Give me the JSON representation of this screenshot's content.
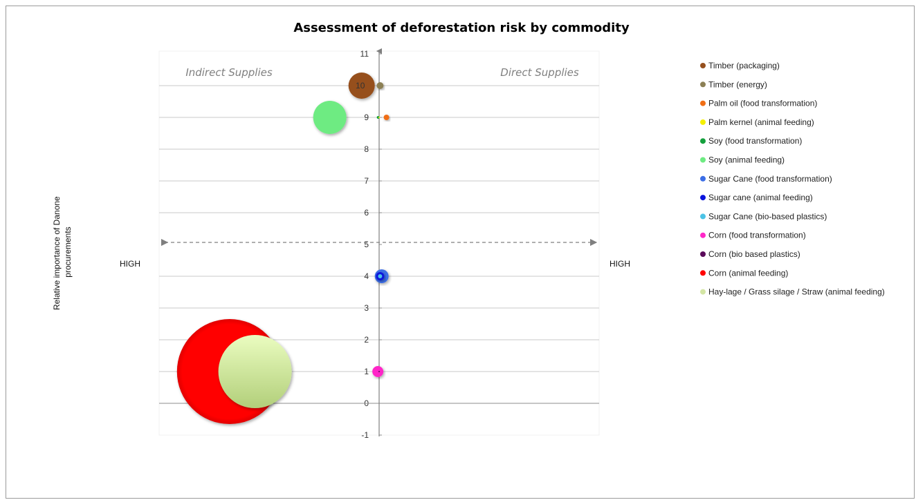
{
  "chart_data": {
    "type": "scatter",
    "title": "Assessment of deforestation risk by commodity",
    "ylabel_lines": [
      "Relative importance of Danone",
      "procurements"
    ],
    "ylim": [
      -1,
      11
    ],
    "yticks": [
      -1,
      0,
      1,
      2,
      3,
      4,
      5,
      6,
      7,
      8,
      9,
      10,
      11
    ],
    "grid": true,
    "legend": "right",
    "quadrants": {
      "left": "Indirect Supplies",
      "right": "Direct Supplies"
    },
    "side_labels": {
      "left": "HIGH",
      "right": "HIGH"
    },
    "series": [
      {
        "name": "Timber (packaging)",
        "color": "#96501e",
        "x": -0.55,
        "y": 10,
        "size": 19,
        "label": "10"
      },
      {
        "name": "Timber (energy)",
        "color": "#8c8055",
        "x": 0.03,
        "y": 10,
        "size": 5
      },
      {
        "name": "Palm oil (food transformation)",
        "color": "#f06e14",
        "x": 0.23,
        "y": 9,
        "size": 4
      },
      {
        "name": "Palm kernel (animal feeding)",
        "color": "#f5f000",
        "x": 0.0,
        "y": 9,
        "size": 1
      },
      {
        "name": "Soy (food transformation)",
        "color": "#14a03c",
        "x": -0.03,
        "y": 9,
        "size": 2
      },
      {
        "name": "Soy (animal feeding)",
        "color": "#6eeb82",
        "x": -1.55,
        "y": 9,
        "size": 24
      },
      {
        "name": "Sugar Cane (food transformation)",
        "color": "#3c6ee6",
        "x": 0.08,
        "y": 4,
        "size": 10
      },
      {
        "name": "Sugar cane (animal feeding)",
        "color": "#0a14dc",
        "x": 0.03,
        "y": 4,
        "size": 6
      },
      {
        "name": "Sugar Cane (bio-based plastics)",
        "color": "#4bc3e6",
        "x": 0.03,
        "y": 4,
        "size": 3
      },
      {
        "name": "Corn (food transformation)",
        "color": "#ff28c8",
        "x": -0.04,
        "y": 1,
        "size": 8
      },
      {
        "name": "Corn (bio based plastics)",
        "color": "#5a0a5a",
        "x": 0.0,
        "y": 1,
        "size": 1
      },
      {
        "name": "Corn (animal feeding)",
        "color": "#ff0000",
        "x": -4.7,
        "y": 1,
        "size": 76
      },
      {
        "name": "Hay-lage / Grass silage / Straw (animal feeding)",
        "color": "#d4e6a5",
        "x": -3.9,
        "y": 1,
        "size": 53
      }
    ]
  }
}
